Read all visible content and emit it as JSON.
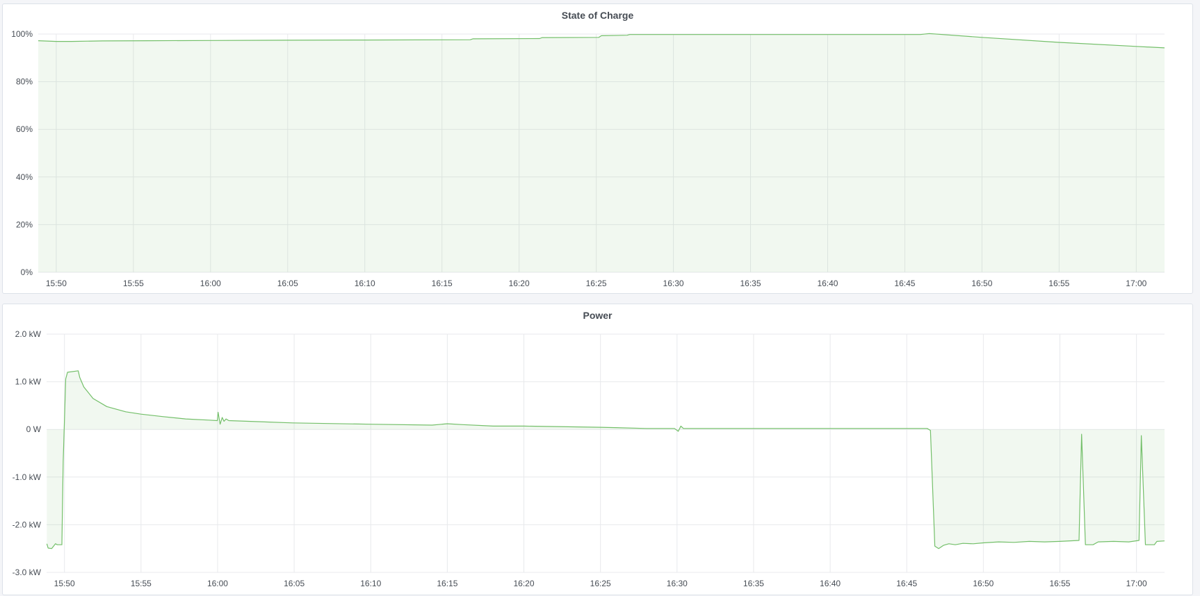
{
  "theme": {
    "line_color": "#73bf69",
    "fill_color": "#73bf69",
    "grid_color": "#e8e9ec",
    "background": "#f4f5f8",
    "panel_background": "#ffffff"
  },
  "panels": [
    {
      "title": "State of Charge",
      "chart_data": {
        "type": "area",
        "title": "State of Charge",
        "x_range": [
          "15:48:50",
          "17:01:50"
        ],
        "y_range": [
          0,
          100
        ],
        "y_ticks": [
          {
            "value": 0,
            "label": "0%"
          },
          {
            "value": 20,
            "label": "20%"
          },
          {
            "value": 40,
            "label": "40%"
          },
          {
            "value": 60,
            "label": "60%"
          },
          {
            "value": 80,
            "label": "80%"
          },
          {
            "value": 100,
            "label": "100%"
          }
        ],
        "x_ticks": [
          "15:50",
          "15:55",
          "16:00",
          "16:05",
          "16:10",
          "16:15",
          "16:20",
          "16:25",
          "16:30",
          "16:35",
          "16:40",
          "16:45",
          "16:50",
          "16:55",
          "17:00"
        ],
        "grid": true,
        "series": [
          {
            "points": [
              [
                "15:48:50",
                97.2
              ],
              [
                "15:50:00",
                96.9
              ],
              [
                "15:51:00",
                96.9
              ],
              [
                "15:53:00",
                97.1
              ],
              [
                "15:56:00",
                97.2
              ],
              [
                "16:00:00",
                97.3
              ],
              [
                "16:05:00",
                97.4
              ],
              [
                "16:10:00",
                97.5
              ],
              [
                "16:16:50",
                97.6
              ],
              [
                "16:17:00",
                98.0
              ],
              [
                "16:21:20",
                98.1
              ],
              [
                "16:21:30",
                98.5
              ],
              [
                "16:25:10",
                98.6
              ],
              [
                "16:25:20",
                99.3
              ],
              [
                "16:27:00",
                99.5
              ],
              [
                "16:27:10",
                99.8
              ],
              [
                "16:46:00",
                99.8
              ],
              [
                "16:46:35",
                100.2
              ],
              [
                "16:50:00",
                98.6
              ],
              [
                "16:55:00",
                96.5
              ],
              [
                "17:00:00",
                94.8
              ],
              [
                "17:01:50",
                94.2
              ]
            ]
          }
        ]
      }
    },
    {
      "title": "Power",
      "chart_data": {
        "type": "area",
        "title": "Power",
        "x_range": [
          "15:48:50",
          "17:01:50"
        ],
        "y_range": [
          -3.0,
          2.0
        ],
        "y_unit": "kW",
        "y_ticks": [
          {
            "value": 2,
            "label": "2.0 kW"
          },
          {
            "value": 1,
            "label": "1.0 kW"
          },
          {
            "value": 0,
            "label": "0 W"
          },
          {
            "value": -1,
            "label": "-1.0 kW"
          },
          {
            "value": -2,
            "label": "-2.0 kW"
          },
          {
            "value": -3,
            "label": "-3.0 kW"
          }
        ],
        "x_ticks": [
          "15:50",
          "15:55",
          "16:00",
          "16:05",
          "16:10",
          "16:15",
          "16:20",
          "16:25",
          "16:30",
          "16:35",
          "16:40",
          "16:45",
          "16:50",
          "16:55",
          "17:00"
        ],
        "grid": true,
        "series": [
          {
            "points": [
              [
                "15:48:51",
                -2.4
              ],
              [
                "15:48:56",
                -2.49
              ],
              [
                "15:49:10",
                -2.5
              ],
              [
                "15:49:25",
                -2.4
              ],
              [
                "15:49:32",
                -2.42
              ],
              [
                "15:49:50",
                -2.42
              ],
              [
                "15:49:55",
                -0.67
              ],
              [
                "15:50:05",
                1.06
              ],
              [
                "15:50:12",
                1.2
              ],
              [
                "15:50:54",
                1.23
              ],
              [
                "15:51:00",
                1.09
              ],
              [
                "15:51:16",
                0.89
              ],
              [
                "15:51:52",
                0.65
              ],
              [
                "15:52:46",
                0.48
              ],
              [
                "15:54:00",
                0.37
              ],
              [
                "15:55:00",
                0.32
              ],
              [
                "15:56:24",
                0.27
              ],
              [
                "15:57:55",
                0.22
              ],
              [
                "15:59:27",
                0.195
              ],
              [
                "15:59:59",
                0.185
              ],
              [
                "16:00:02",
                0.36
              ],
              [
                "16:00:10",
                0.11
              ],
              [
                "16:00:18",
                0.25
              ],
              [
                "16:00:25",
                0.17
              ],
              [
                "16:00:33",
                0.22
              ],
              [
                "16:00:44",
                0.185
              ],
              [
                "16:04:54",
                0.137
              ],
              [
                "16:10:00",
                0.11
              ],
              [
                "16:14:00",
                0.09
              ],
              [
                "16:15:00",
                0.12
              ],
              [
                "16:16:00",
                0.1
              ],
              [
                "16:18:00",
                0.07
              ],
              [
                "16:20:00",
                0.07
              ],
              [
                "16:25:00",
                0.045
              ],
              [
                "16:28:00",
                0.02
              ],
              [
                "16:29:50",
                0.02
              ],
              [
                "16:30:05",
                -0.04
              ],
              [
                "16:30:15",
                0.07
              ],
              [
                "16:30:25",
                0.02
              ],
              [
                "16:35:00",
                0.02
              ],
              [
                "16:40:00",
                0.02
              ],
              [
                "16:46:20",
                0.02
              ],
              [
                "16:46:33",
                -0.02
              ],
              [
                "16:46:50",
                -2.45
              ],
              [
                "16:47:05",
                -2.5
              ],
              [
                "16:47:25",
                -2.43
              ],
              [
                "16:47:45",
                -2.4
              ],
              [
                "16:48:10",
                -2.42
              ],
              [
                "16:48:40",
                -2.39
              ],
              [
                "16:49:20",
                -2.4
              ],
              [
                "16:50:00",
                -2.38
              ],
              [
                "16:51:00",
                -2.36
              ],
              [
                "16:52:00",
                -2.37
              ],
              [
                "16:53:00",
                -2.35
              ],
              [
                "16:54:00",
                -2.36
              ],
              [
                "16:55:00",
                -2.35
              ],
              [
                "16:56:15",
                -2.33
              ],
              [
                "16:56:25",
                -0.1
              ],
              [
                "16:56:40",
                -2.42
              ],
              [
                "16:57:10",
                -2.42
              ],
              [
                "16:57:30",
                -2.36
              ],
              [
                "16:58:30",
                -2.35
              ],
              [
                "16:59:30",
                -2.36
              ],
              [
                "17:00:10",
                -2.33
              ],
              [
                "17:00:19",
                -0.13
              ],
              [
                "17:00:35",
                -2.42
              ],
              [
                "17:01:10",
                -2.42
              ],
              [
                "17:01:20",
                -2.35
              ],
              [
                "17:01:50",
                -2.34
              ]
            ]
          }
        ]
      }
    }
  ]
}
